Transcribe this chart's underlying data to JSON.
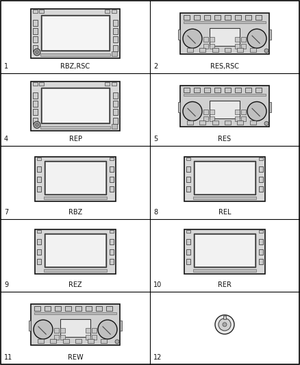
{
  "background_color": "#ffffff",
  "grid_color": "#000000",
  "cells": [
    {
      "num": "1",
      "label": "RBZ,RSC",
      "type": "wide_nav",
      "row": 0,
      "col": 0
    },
    {
      "num": "2",
      "label": "RES,RSC",
      "type": "traditional",
      "row": 0,
      "col": 1
    },
    {
      "num": "4",
      "label": "REP",
      "type": "wide_nav",
      "row": 1,
      "col": 0
    },
    {
      "num": "5",
      "label": "RES",
      "type": "traditional",
      "row": 1,
      "col": 1
    },
    {
      "num": "7",
      "label": "RBZ",
      "type": "wide_nav_plain",
      "row": 2,
      "col": 0
    },
    {
      "num": "8",
      "label": "REL",
      "type": "wide_nav_plain",
      "row": 2,
      "col": 1
    },
    {
      "num": "9",
      "label": "REZ",
      "type": "wide_nav_plain",
      "row": 3,
      "col": 0
    },
    {
      "num": "10",
      "label": "RER",
      "type": "wide_nav_plain",
      "row": 3,
      "col": 1
    },
    {
      "num": "11",
      "label": "REW",
      "type": "traditional",
      "row": 4,
      "col": 0
    },
    {
      "num": "12",
      "label": "",
      "type": "knob",
      "row": 4,
      "col": 1
    }
  ]
}
